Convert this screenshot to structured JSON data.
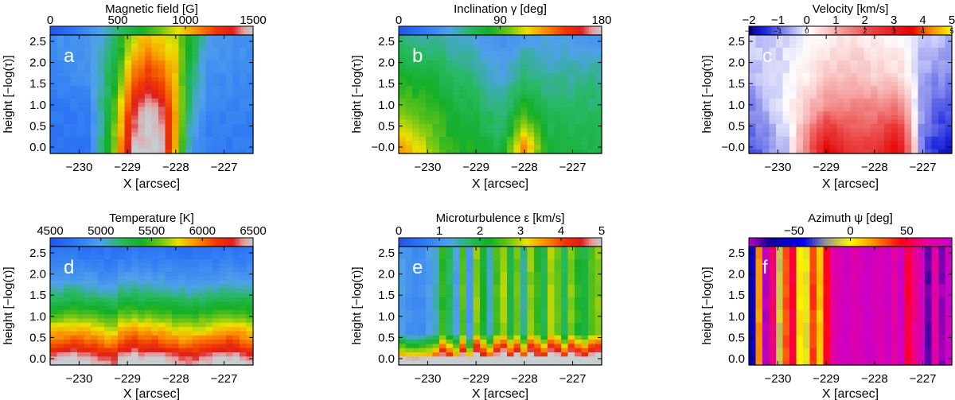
{
  "chart_data": [
    {
      "type": "heatmap",
      "letter": "a",
      "title": "Magnetic field [G]",
      "colormap": "rainbow-gray",
      "cbar_range": [
        0,
        1500
      ],
      "cbar_ticks": [
        0,
        500,
        1000,
        1500
      ],
      "cbar_tick_labels": [
        "0",
        "500",
        "1000",
        "1500"
      ],
      "xlabel": "X [arcsec]",
      "ylabel": "height [−log(τ)]",
      "xlim": [
        -230.6,
        -226.4
      ],
      "x_ticks": [
        -230,
        -229,
        -228,
        -227
      ],
      "x_tick_labels": [
        "−230",
        "−229",
        "−228",
        "−227"
      ],
      "ylim": [
        -0.15,
        2.65
      ],
      "y_ticks": [
        0.0,
        0.5,
        1.0,
        1.5,
        2.0,
        2.5
      ],
      "y_tick_labels": [
        "0.0",
        "0.5",
        "1.0",
        "1.5",
        "2.0",
        "2.5"
      ],
      "columns_by_x_profile": [
        [
          -230.6,
          300,
          250,
          180,
          150
        ],
        [
          -229.8,
          320,
          300,
          220,
          180
        ],
        [
          -229.3,
          500,
          600,
          700,
          800
        ],
        [
          -228.9,
          900,
          1100,
          1300,
          1500
        ],
        [
          -228.6,
          1000,
          1250,
          1500,
          1500
        ],
        [
          -228.3,
          950,
          1150,
          1400,
          1500
        ],
        [
          -228.0,
          900,
          1000,
          1050,
          1000
        ],
        [
          -227.7,
          650,
          550,
          450,
          350
        ],
        [
          -227.3,
          350,
          300,
          250,
          200
        ],
        [
          -226.4,
          300,
          260,
          220,
          200
        ]
      ],
      "profile_heights": [
        2.55,
        1.7,
        0.9,
        0.0
      ]
    },
    {
      "type": "heatmap",
      "letter": "b",
      "title": "Inclination γ [deg]",
      "colormap": "rainbow-gray",
      "cbar_range": [
        0,
        180
      ],
      "cbar_ticks": [
        0,
        90,
        180
      ],
      "cbar_tick_labels": [
        "0",
        "90",
        "180"
      ],
      "xlabel": "X [arcsec]",
      "ylabel": "height [−log(τ)]",
      "xlim": [
        -230.6,
        -226.4
      ],
      "x_ticks": [
        -230,
        -229,
        -228,
        -227
      ],
      "x_tick_labels": [
        "−230",
        "−229",
        "−228",
        "−227"
      ],
      "ylim": [
        -0.15,
        2.65
      ],
      "y_ticks": [
        0.0,
        0.5,
        1.0,
        1.5,
        2.0,
        2.5
      ],
      "y_tick_labels": [
        "−0.0",
        "0.5",
        "1.0",
        "1.5",
        "2.0",
        "2.5"
      ],
      "columns_by_x_profile": [
        [
          -230.6,
          60,
          80,
          95,
          130
        ],
        [
          -230.0,
          55,
          75,
          90,
          105
        ],
        [
          -229.5,
          50,
          65,
          75,
          85
        ],
        [
          -229.0,
          45,
          60,
          70,
          80
        ],
        [
          -228.5,
          35,
          45,
          55,
          70
        ],
        [
          -228.0,
          45,
          60,
          85,
          130
        ],
        [
          -227.5,
          45,
          55,
          65,
          75
        ],
        [
          -226.4,
          40,
          55,
          65,
          70
        ]
      ],
      "profile_heights": [
        2.55,
        1.7,
        0.9,
        0.0
      ]
    },
    {
      "type": "heatmap",
      "letter": "c",
      "title": "Velocity [km/s]",
      "colormap": "blue-white-red",
      "cbar_range": [
        -2,
        5
      ],
      "cbar_ticks": [
        -2,
        -1,
        0,
        1,
        2,
        3,
        4,
        5
      ],
      "cbar_tick_labels": [
        "−2",
        "−1",
        "0",
        "1",
        "2",
        "3",
        "4",
        "5"
      ],
      "cbar_top_tick_labels": [
        "−2",
        "−1",
        "0",
        "1",
        "2",
        "3",
        "4",
        "5"
      ],
      "xlabel": "X [arcsec]",
      "ylabel": "height [−log(τ)]",
      "xlim": [
        -230.6,
        -226.4
      ],
      "x_ticks": [
        -230,
        -229,
        -228,
        -227
      ],
      "x_tick_labels": [
        "−230",
        "−229",
        "−228",
        "−227"
      ],
      "ylim": [
        -0.15,
        2.65
      ],
      "y_ticks": [
        0.0,
        0.5,
        1.0,
        1.5,
        2.0,
        2.5
      ],
      "y_tick_labels": [
        "−0.0",
        "0.5",
        "1.0",
        "1.5",
        "2.0",
        "2.5"
      ],
      "columns_by_x_profile": [
        [
          -230.6,
          -0.3,
          -0.5,
          -0.8,
          -1.2
        ],
        [
          -229.8,
          -0.2,
          -0.1,
          0.0,
          -0.3
        ],
        [
          -229.0,
          0.3,
          0.6,
          1.5,
          3.5
        ],
        [
          -228.5,
          0.4,
          0.8,
          1.5,
          2.5
        ],
        [
          -228.0,
          0.3,
          0.6,
          1.5,
          2.5
        ],
        [
          -227.5,
          0.2,
          0.5,
          1.8,
          3.5
        ],
        [
          -227.0,
          -0.3,
          -0.6,
          -0.8,
          -1.0
        ],
        [
          -226.4,
          -0.5,
          -0.8,
          -1.2,
          -1.8
        ]
      ],
      "profile_heights": [
        2.55,
        1.7,
        0.9,
        0.0
      ]
    },
    {
      "type": "heatmap",
      "letter": "d",
      "title": "Temperature [K]",
      "colormap": "rainbow-gray",
      "cbar_range": [
        4500,
        6500
      ],
      "cbar_ticks": [
        4500,
        5000,
        5500,
        6000,
        6500
      ],
      "cbar_tick_labels": [
        "4500",
        "5000",
        "5500",
        "6000",
        "6500"
      ],
      "xlabel": "X [arcsec]",
      "ylabel": "height [−log(τ)]",
      "xlim": [
        -230.6,
        -226.4
      ],
      "x_ticks": [
        -230,
        -229,
        -228,
        -227
      ],
      "x_tick_labels": [
        "−230",
        "−229",
        "−228",
        "−227"
      ],
      "ylim": [
        -0.15,
        2.65
      ],
      "y_ticks": [
        0.0,
        0.5,
        1.0,
        1.5,
        2.0,
        2.5
      ],
      "y_tick_labels": [
        "0.0",
        "0.5",
        "1.0",
        "1.5",
        "2.0",
        "2.5"
      ],
      "temperature_height_profile": [
        [
          -0.15,
          6500
        ],
        [
          0.05,
          6400
        ],
        [
          0.25,
          6150
        ],
        [
          0.5,
          5950
        ],
        [
          0.8,
          5700
        ],
        [
          1.1,
          5450
        ],
        [
          1.45,
          5200
        ],
        [
          1.85,
          4950
        ],
        [
          2.25,
          4800
        ],
        [
          2.65,
          4700
        ]
      ]
    },
    {
      "type": "heatmap",
      "letter": "e",
      "title": "Microturbulence ε [km/s]",
      "colormap": "rainbow-gray",
      "cbar_range": [
        0,
        5
      ],
      "cbar_ticks": [
        0,
        1,
        2,
        3,
        4,
        5
      ],
      "cbar_tick_labels": [
        "0",
        "1",
        "2",
        "3",
        "4",
        "5"
      ],
      "xlabel": "X [arcsec]",
      "ylabel": "height [−log(τ)]",
      "xlim": [
        -230.6,
        -226.4
      ],
      "x_ticks": [
        -230,
        -229,
        -228,
        -227
      ],
      "x_tick_labels": [
        "−230",
        "−229",
        "−228",
        "−227"
      ],
      "ylim": [
        -0.15,
        2.65
      ],
      "y_ticks": [
        0.0,
        0.5,
        1.0,
        1.5,
        2.0,
        2.5
      ],
      "y_tick_labels": [
        "0.0",
        "0.5",
        "1.0",
        "1.5",
        "2.0",
        "2.5"
      ]
    },
    {
      "type": "heatmap",
      "letter": "f",
      "title": "Azimuth ψ [deg]",
      "colormap": "blue-yellow-magenta",
      "cbar_range": [
        -90,
        90
      ],
      "cbar_ticks": [
        -50,
        0,
        50
      ],
      "cbar_tick_labels": [
        "−50",
        "0",
        "50"
      ],
      "xlabel": "X [arcsec]",
      "ylabel": "height [−log(τ)]",
      "xlim": [
        -230.6,
        -226.4
      ],
      "x_ticks": [
        -230,
        -229,
        -228,
        -227
      ],
      "x_tick_labels": [
        "−230",
        "−229",
        "−228",
        "−227"
      ],
      "ylim": [
        -0.15,
        2.65
      ],
      "y_ticks": [
        0.0,
        0.5,
        1.0,
        1.5,
        2.0,
        2.5
      ],
      "y_tick_labels": [
        "0.0",
        "0.5",
        "1.0",
        "1.5",
        "2.0",
        "2.5"
      ],
      "column_azimuth_values": [
        -60,
        20,
        -90,
        60,
        -10,
        30,
        50,
        5,
        40,
        -5,
        35,
        10,
        45,
        70,
        80,
        85,
        75,
        80,
        90,
        82,
        78,
        88,
        70,
        60,
        85,
        50,
        65,
        80,
        -80,
        70,
        -85,
        88
      ]
    }
  ]
}
